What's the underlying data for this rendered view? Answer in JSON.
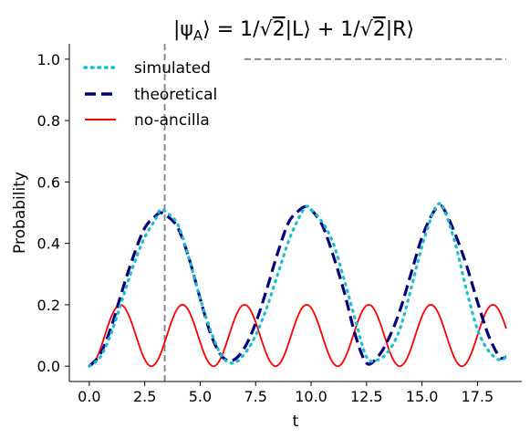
{
  "chart_data": {
    "type": "line",
    "title": "|ψ_A⟩ = 1/√2|L⟩ + 1/√2|R⟩",
    "title_parts": {
      "open": "|ψ",
      "sub": "A",
      "mid1": "⟩ = 1/",
      "sqrt1": "√",
      "two1": "2",
      "mid2": "|L⟩ + 1/",
      "sqrt2": "√",
      "two2": "2",
      "end": "|R⟩"
    },
    "xlabel": "t",
    "ylabel": "Probability",
    "xlim": [
      -0.9,
      19.5
    ],
    "ylim": [
      -0.05,
      1.05
    ],
    "xticks": [
      0.0,
      2.5,
      5.0,
      7.5,
      10.0,
      12.5,
      15.0,
      17.5
    ],
    "xtick_labels": [
      "0.0",
      "2.5",
      "5.0",
      "7.5",
      "10.0",
      "12.5",
      "15.0",
      "17.5"
    ],
    "yticks": [
      0.0,
      0.2,
      0.4,
      0.6,
      0.8,
      1.0
    ],
    "ytick_labels": [
      "0.0",
      "0.2",
      "0.4",
      "0.6",
      "0.8",
      "1.0"
    ],
    "grid": false,
    "legend_position": "top-left",
    "series": [
      {
        "name": "simulated",
        "color": "#17becf",
        "style": "dotted",
        "x": [
          0,
          0.5,
          1,
          1.5,
          2,
          2.5,
          3,
          3.2,
          3.5,
          4,
          4.5,
          5,
          5.5,
          6,
          6.5,
          7,
          7.5,
          8,
          8.5,
          9,
          9.5,
          9.8,
          10,
          10.5,
          11,
          11.5,
          12,
          12.5,
          13,
          13.5,
          14,
          14.5,
          15,
          15.5,
          15.8,
          16,
          16.5,
          17,
          17.5,
          18,
          18.5,
          18.8
        ],
        "y": [
          0.0,
          0.03,
          0.11,
          0.22,
          0.33,
          0.42,
          0.48,
          0.51,
          0.5,
          0.46,
          0.35,
          0.22,
          0.11,
          0.03,
          0.01,
          0.04,
          0.1,
          0.19,
          0.3,
          0.41,
          0.49,
          0.52,
          0.51,
          0.47,
          0.4,
          0.28,
          0.15,
          0.03,
          0.02,
          0.05,
          0.12,
          0.25,
          0.39,
          0.5,
          0.53,
          0.51,
          0.4,
          0.25,
          0.12,
          0.05,
          0.02,
          0.03
        ]
      },
      {
        "name": "theoretical",
        "color": "#000080",
        "style": "dashed",
        "x": [
          0,
          0.5,
          1,
          1.5,
          2,
          2.5,
          3,
          3.2,
          3.5,
          4,
          4.5,
          5,
          5.5,
          6,
          6.5,
          7,
          7.5,
          8,
          8.5,
          9,
          9.5,
          9.8,
          10,
          10.5,
          11,
          11.5,
          12,
          12.5,
          13,
          13.5,
          14,
          14.5,
          15,
          15.5,
          15.8,
          16,
          16.5,
          17,
          17.5,
          18,
          18.5,
          18.8
        ],
        "y": [
          0.0,
          0.04,
          0.13,
          0.25,
          0.36,
          0.45,
          0.49,
          0.5,
          0.49,
          0.45,
          0.35,
          0.22,
          0.1,
          0.03,
          0.02,
          0.06,
          0.14,
          0.25,
          0.37,
          0.47,
          0.51,
          0.52,
          0.51,
          0.46,
          0.36,
          0.24,
          0.1,
          0.01,
          0.03,
          0.09,
          0.18,
          0.3,
          0.42,
          0.5,
          0.52,
          0.51,
          0.43,
          0.33,
          0.21,
          0.1,
          0.03,
          0.03
        ]
      },
      {
        "name": "no-ancilla",
        "color": "#ff0000",
        "style": "solid",
        "x_start": 0,
        "x_end": 18.8,
        "amplitude": 0.2,
        "period": 2.8
      }
    ],
    "reference_lines": [
      {
        "orientation": "vertical",
        "x": 3.4,
        "color": "#808080",
        "style": "dashed"
      },
      {
        "orientation": "horizontal",
        "y": 1.0,
        "x_from": 7.0,
        "x_to": 18.8,
        "color": "#808080",
        "style": "dashed"
      }
    ]
  }
}
